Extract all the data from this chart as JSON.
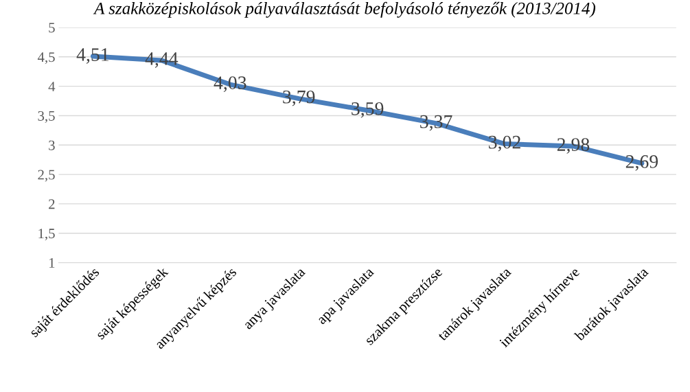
{
  "chart_data": {
    "type": "line",
    "title": "A szakközépiskolások pályaválasztását befolyásoló tényezők (2013/2014)",
    "categories": [
      "saját érdeklődés",
      "saját képességek",
      "anyanyelvű képzés",
      "anya javaslata",
      "apa javaslata",
      "szakma presztízse",
      "tanárok javaslata",
      "intézmény hírneve",
      "barátok javaslata"
    ],
    "values": [
      4.51,
      4.44,
      4.03,
      3.79,
      3.59,
      3.37,
      3.02,
      2.98,
      2.69
    ],
    "value_labels": [
      "4,51",
      "4,44",
      "4,03",
      "3,79",
      "3,59",
      "3,37",
      "3,02",
      "2,98",
      "2,69"
    ],
    "color": "#4a7ebb",
    "ylim": [
      1,
      5
    ],
    "yticks": [
      1,
      {
        "value": 1.5,
        "label": "1,5"
      },
      2,
      {
        "value": 2.5,
        "label": "2,5"
      },
      3,
      {
        "value": 3.5,
        "label": "3,5"
      },
      4,
      {
        "value": 4.5,
        "label": "4,5"
      },
      5
    ],
    "grid": "y",
    "marker": "none",
    "line_style": "solid"
  }
}
